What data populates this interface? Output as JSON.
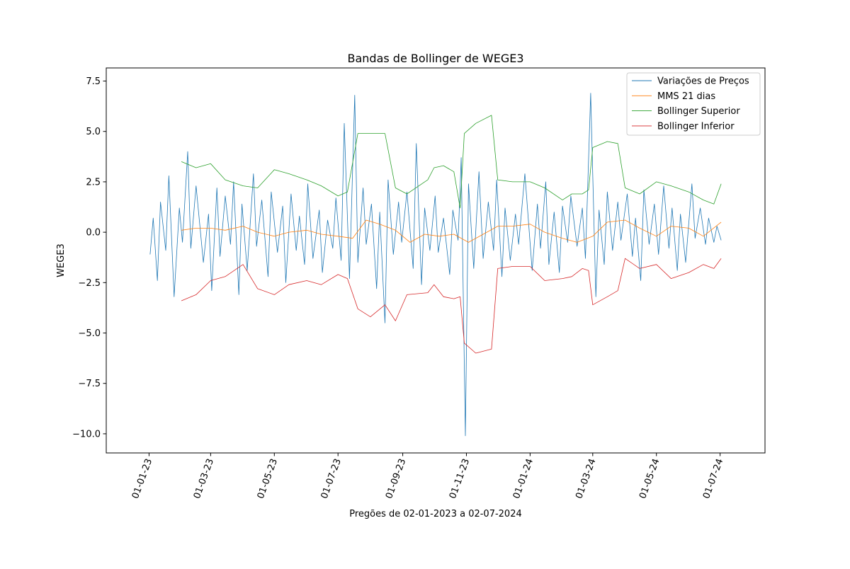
{
  "chart_data": {
    "type": "line",
    "title": "Bandas de Bollinger de WEGE3",
    "xlabel": "Pregões de 02-01-2023 a 02-07-2024",
    "ylabel": "WEGE3",
    "xlim": [
      "2022-11-21",
      "2024-08-13"
    ],
    "ylim": [
      -10.95,
      8.15
    ],
    "yticks": [
      7.5,
      5.0,
      2.5,
      0.0,
      -2.5,
      -5.0,
      -7.5,
      -10.0
    ],
    "ytick_labels": [
      "7.5",
      "5.0",
      "2.5",
      "0.0",
      "−2.5",
      "−5.0",
      "−7.5",
      "−10.0"
    ],
    "xticks": [
      "2023-01-01",
      "2023-03-01",
      "2023-05-01",
      "2023-07-01",
      "2023-09-01",
      "2023-11-01",
      "2024-01-01",
      "2024-03-01",
      "2024-05-01",
      "2024-07-01"
    ],
    "xtick_labels": [
      "01-01-23",
      "01-03-23",
      "01-05-23",
      "01-07-23",
      "01-09-23",
      "01-11-23",
      "01-01-24",
      "01-03-24",
      "01-05-24",
      "01-07-24"
    ],
    "grid": false,
    "legend_position": "top-right",
    "series": [
      {
        "name": "Variações de Preços",
        "color": "#1f77b4",
        "x": [
          "2023-01-02",
          "2023-01-05",
          "2023-01-09",
          "2023-01-12",
          "2023-01-17",
          "2023-01-20",
          "2023-01-25",
          "2023-01-30",
          "2023-02-02",
          "2023-02-07",
          "2023-02-10",
          "2023-02-15",
          "2023-02-22",
          "2023-02-27",
          "2023-03-02",
          "2023-03-07",
          "2023-03-10",
          "2023-03-15",
          "2023-03-20",
          "2023-03-23",
          "2023-03-28",
          "2023-03-31",
          "2023-04-05",
          "2023-04-11",
          "2023-04-14",
          "2023-04-19",
          "2023-04-25",
          "2023-04-28",
          "2023-05-04",
          "2023-05-09",
          "2023-05-12",
          "2023-05-17",
          "2023-05-22",
          "2023-05-25",
          "2023-05-30",
          "2023-06-02",
          "2023-06-07",
          "2023-06-13",
          "2023-06-16",
          "2023-06-21",
          "2023-06-26",
          "2023-06-29",
          "2023-07-04",
          "2023-07-07",
          "2023-07-12",
          "2023-07-17",
          "2023-07-20",
          "2023-07-25",
          "2023-07-28",
          "2023-08-02",
          "2023-08-07",
          "2023-08-10",
          "2023-08-15",
          "2023-08-18",
          "2023-08-23",
          "2023-08-28",
          "2023-08-31",
          "2023-09-05",
          "2023-09-11",
          "2023-09-14",
          "2023-09-19",
          "2023-09-22",
          "2023-09-27",
          "2023-10-02",
          "2023-10-05",
          "2023-10-10",
          "2023-10-16",
          "2023-10-19",
          "2023-10-24",
          "2023-10-26",
          "2023-10-27",
          "2023-10-31",
          "2023-11-03",
          "2023-11-08",
          "2023-11-13",
          "2023-11-17",
          "2023-11-22",
          "2023-11-27",
          "2023-11-30",
          "2023-12-05",
          "2023-12-08",
          "2023-12-13",
          "2023-12-18",
          "2023-12-21",
          "2023-12-27",
          "2024-01-03",
          "2024-01-08",
          "2024-01-11",
          "2024-01-16",
          "2024-01-19",
          "2024-01-24",
          "2024-01-29",
          "2024-02-01",
          "2024-02-06",
          "2024-02-09",
          "2024-02-15",
          "2024-02-20",
          "2024-02-23",
          "2024-02-28",
          "2024-03-04",
          "2024-03-07",
          "2024-03-12",
          "2024-03-15",
          "2024-03-20",
          "2024-03-25",
          "2024-03-28",
          "2024-04-03",
          "2024-04-08",
          "2024-04-11",
          "2024-04-16",
          "2024-04-19",
          "2024-04-24",
          "2024-04-29",
          "2024-05-03",
          "2024-05-08",
          "2024-05-13",
          "2024-05-16",
          "2024-05-21",
          "2024-05-24",
          "2024-05-29",
          "2024-06-04",
          "2024-06-07",
          "2024-06-12",
          "2024-06-17",
          "2024-06-20",
          "2024-06-25",
          "2024-06-28",
          "2024-07-02"
        ],
        "values": [
          -1.1,
          0.7,
          -2.4,
          1.5,
          -0.9,
          2.8,
          -3.2,
          1.2,
          -0.5,
          4.0,
          -0.8,
          2.3,
          -1.5,
          0.9,
          -2.9,
          2.2,
          -1.2,
          1.8,
          -0.6,
          2.5,
          -3.1,
          1.4,
          -1.9,
          2.9,
          -0.7,
          1.6,
          -2.2,
          2.0,
          -1.0,
          1.3,
          -2.5,
          1.9,
          -0.9,
          0.8,
          -1.6,
          2.4,
          -1.3,
          1.1,
          -2.0,
          0.6,
          -0.8,
          1.7,
          -1.4,
          5.4,
          -2.3,
          6.8,
          -1.5,
          2.2,
          -0.6,
          1.4,
          -2.8,
          1.0,
          -4.5,
          2.6,
          -1.1,
          1.5,
          -0.5,
          2.0,
          -1.8,
          4.4,
          -2.6,
          1.2,
          -0.9,
          1.8,
          -1.0,
          0.7,
          -2.1,
          1.1,
          -0.4,
          2.2,
          3.7,
          -10.1,
          2.4,
          -1.8,
          3.0,
          -1.3,
          1.5,
          -0.9,
          2.6,
          -2.2,
          1.2,
          -1.4,
          0.9,
          -0.6,
          2.9,
          -1.9,
          1.4,
          -0.8,
          2.5,
          -1.6,
          1.0,
          -2.0,
          1.3,
          -0.5,
          1.8,
          -0.7,
          1.2,
          -1.3,
          6.9,
          -3.2,
          1.1,
          -1.6,
          2.0,
          -0.9,
          1.5,
          -0.4,
          1.9,
          -1.2,
          0.7,
          -2.4,
          2.1,
          -0.6,
          1.4,
          -1.1,
          2.3,
          -0.8,
          1.2,
          -1.9,
          0.9,
          -1.5,
          2.4,
          -0.3,
          1.2,
          -0.6,
          0.7,
          -0.5,
          0.3,
          -0.4
        ]
      },
      {
        "name": "MMS 21 dias",
        "color": "#ff7f0e",
        "x": [
          "2023-02-01",
          "2023-02-15",
          "2023-03-01",
          "2023-03-15",
          "2023-04-01",
          "2023-04-15",
          "2023-05-01",
          "2023-05-15",
          "2023-06-01",
          "2023-06-15",
          "2023-07-01",
          "2023-07-15",
          "2023-07-28",
          "2023-08-10",
          "2023-08-25",
          "2023-09-08",
          "2023-09-22",
          "2023-10-06",
          "2023-10-20",
          "2023-11-03",
          "2023-11-17",
          "2023-12-01",
          "2023-12-15",
          "2024-01-01",
          "2024-01-15",
          "2024-02-01",
          "2024-02-15",
          "2024-03-01",
          "2024-03-15",
          "2024-04-01",
          "2024-04-15",
          "2024-05-01",
          "2024-05-15",
          "2024-06-01",
          "2024-06-15",
          "2024-07-02"
        ],
        "values": [
          0.1,
          0.2,
          0.2,
          0.1,
          0.3,
          0.0,
          -0.2,
          0.0,
          0.1,
          -0.1,
          -0.2,
          -0.3,
          0.6,
          0.4,
          0.1,
          -0.5,
          -0.1,
          -0.2,
          -0.1,
          -0.5,
          -0.1,
          0.3,
          0.3,
          0.4,
          0.0,
          -0.3,
          -0.5,
          -0.2,
          0.5,
          0.6,
          0.2,
          -0.2,
          0.3,
          0.2,
          -0.2,
          0.5
        ]
      },
      {
        "name": "Bollinger Superior",
        "color": "#2ca02c",
        "x": [
          "2023-02-01",
          "2023-02-15",
          "2023-03-01",
          "2023-03-15",
          "2023-04-01",
          "2023-04-15",
          "2023-05-01",
          "2023-05-15",
          "2023-06-01",
          "2023-06-15",
          "2023-07-01",
          "2023-07-10",
          "2023-07-20",
          "2023-08-01",
          "2023-08-15",
          "2023-08-25",
          "2023-09-05",
          "2023-09-25",
          "2023-10-01",
          "2023-10-10",
          "2023-10-20",
          "2023-10-26",
          "2023-10-30",
          "2023-11-10",
          "2023-11-25",
          "2023-12-01",
          "2023-12-15",
          "2024-01-01",
          "2024-01-15",
          "2024-02-01",
          "2024-02-10",
          "2024-02-20",
          "2024-02-26",
          "2024-03-01",
          "2024-03-15",
          "2024-03-25",
          "2024-04-01",
          "2024-04-15",
          "2024-05-01",
          "2024-05-15",
          "2024-06-01",
          "2024-06-15",
          "2024-06-25",
          "2024-07-02"
        ],
        "values": [
          3.5,
          3.2,
          3.4,
          2.6,
          2.3,
          2.2,
          3.1,
          2.9,
          2.6,
          2.3,
          1.8,
          2.0,
          4.9,
          4.9,
          4.9,
          2.2,
          1.9,
          2.6,
          3.2,
          3.3,
          3.0,
          1.2,
          4.9,
          5.4,
          5.8,
          2.6,
          2.5,
          2.5,
          2.2,
          1.6,
          1.9,
          1.9,
          2.1,
          4.2,
          4.5,
          4.4,
          2.2,
          1.9,
          2.5,
          2.3,
          2.0,
          1.6,
          1.4,
          2.4
        ]
      },
      {
        "name": "Bollinger Inferior",
        "color": "#d62728",
        "x": [
          "2023-02-01",
          "2023-02-15",
          "2023-03-01",
          "2023-03-15",
          "2023-04-01",
          "2023-04-15",
          "2023-05-01",
          "2023-05-15",
          "2023-06-01",
          "2023-06-15",
          "2023-07-01",
          "2023-07-10",
          "2023-07-20",
          "2023-08-01",
          "2023-08-15",
          "2023-08-25",
          "2023-09-05",
          "2023-09-25",
          "2023-10-01",
          "2023-10-10",
          "2023-10-20",
          "2023-10-26",
          "2023-10-30",
          "2023-11-10",
          "2023-11-25",
          "2023-12-01",
          "2023-12-15",
          "2024-01-01",
          "2024-01-15",
          "2024-02-01",
          "2024-02-10",
          "2024-02-20",
          "2024-02-26",
          "2024-03-01",
          "2024-03-15",
          "2024-03-25",
          "2024-04-01",
          "2024-04-15",
          "2024-05-01",
          "2024-05-15",
          "2024-06-01",
          "2024-06-15",
          "2024-06-25",
          "2024-07-02"
        ],
        "values": [
          -3.4,
          -3.1,
          -2.4,
          -2.2,
          -1.6,
          -2.8,
          -3.1,
          -2.6,
          -2.4,
          -2.6,
          -2.1,
          -2.3,
          -3.8,
          -4.2,
          -3.6,
          -4.4,
          -3.1,
          -3.0,
          -2.6,
          -3.2,
          -3.3,
          -3.2,
          -5.5,
          -6.0,
          -5.8,
          -1.8,
          -1.7,
          -1.7,
          -2.4,
          -2.3,
          -2.2,
          -1.8,
          -1.9,
          -3.6,
          -3.2,
          -2.9,
          -1.3,
          -1.8,
          -1.6,
          -2.3,
          -2.0,
          -1.6,
          -1.8,
          -1.3
        ]
      }
    ]
  }
}
